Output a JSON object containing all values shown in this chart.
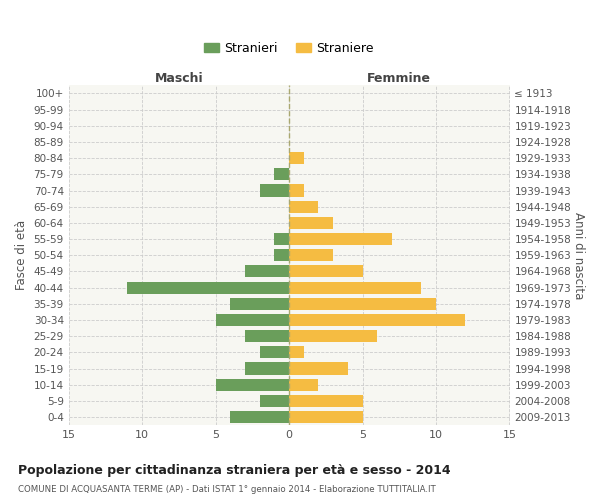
{
  "age_groups": [
    "100+",
    "95-99",
    "90-94",
    "85-89",
    "80-84",
    "75-79",
    "70-74",
    "65-69",
    "60-64",
    "55-59",
    "50-54",
    "45-49",
    "40-44",
    "35-39",
    "30-34",
    "25-29",
    "20-24",
    "15-19",
    "10-14",
    "5-9",
    "0-4"
  ],
  "birth_years": [
    "≤ 1913",
    "1914-1918",
    "1919-1923",
    "1924-1928",
    "1929-1933",
    "1934-1938",
    "1939-1943",
    "1944-1948",
    "1949-1953",
    "1954-1958",
    "1959-1963",
    "1964-1968",
    "1969-1973",
    "1974-1978",
    "1979-1983",
    "1984-1988",
    "1989-1993",
    "1994-1998",
    "1999-2003",
    "2004-2008",
    "2009-2013"
  ],
  "maschi": [
    0,
    0,
    0,
    0,
    0,
    1,
    2,
    0,
    0,
    1,
    1,
    3,
    11,
    4,
    5,
    3,
    2,
    3,
    5,
    2,
    4
  ],
  "femmine": [
    0,
    0,
    0,
    0,
    1,
    0,
    1,
    2,
    3,
    7,
    3,
    5,
    9,
    10,
    12,
    6,
    1,
    4,
    2,
    5,
    5
  ],
  "maschi_color": "#6a9e5b",
  "femmine_color": "#f5bc42",
  "background_color": "#ffffff",
  "plot_bg_color": "#f7f7f2",
  "grid_color": "#cccccc",
  "title": "Popolazione per cittadinanza straniera per età e sesso - 2014",
  "subtitle": "COMUNE DI ACQUASANTA TERME (AP) - Dati ISTAT 1° gennaio 2014 - Elaborazione TUTTITALIA.IT",
  "xlabel_left": "Maschi",
  "xlabel_right": "Femmine",
  "ylabel_left": "Fasce di età",
  "ylabel_right": "Anni di nascita",
  "legend_maschi": "Stranieri",
  "legend_femmine": "Straniere",
  "xlim": 15,
  "bar_height": 0.75
}
